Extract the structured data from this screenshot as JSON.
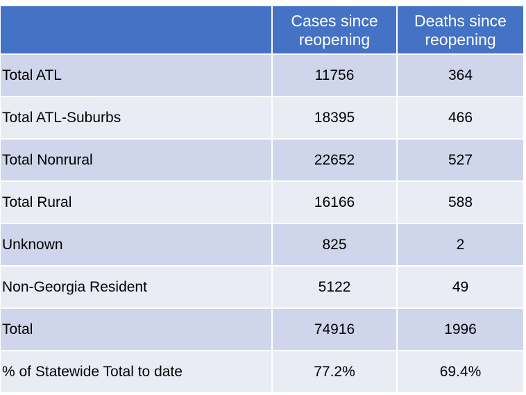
{
  "table": {
    "header": {
      "label": "",
      "cases": [
        "Cases since",
        "reopening"
      ],
      "deaths": [
        "Deaths since",
        "reopening"
      ]
    },
    "rows": [
      {
        "label": "Total ATL",
        "cases": "11756",
        "deaths": "364"
      },
      {
        "label": "Total ATL-Suburbs",
        "cases": "18395",
        "deaths": "466"
      },
      {
        "label": "Total Nonrural",
        "cases": "22652",
        "deaths": "527"
      },
      {
        "label": "Total Rural",
        "cases": "16166",
        "deaths": "588"
      },
      {
        "label": "Unknown",
        "cases": "825",
        "deaths": "2"
      },
      {
        "label": "Non-Georgia Resident",
        "cases": "5122",
        "deaths": "49"
      },
      {
        "label": "Total",
        "cases": "74916",
        "deaths": "1996"
      },
      {
        "label": "% of Statewide Total to date",
        "cases": "77.2%",
        "deaths": "69.4%"
      }
    ],
    "colors": {
      "header": "#4472c4",
      "row_dark": "#cfd5ea",
      "row_light": "#e9ebf5"
    }
  }
}
